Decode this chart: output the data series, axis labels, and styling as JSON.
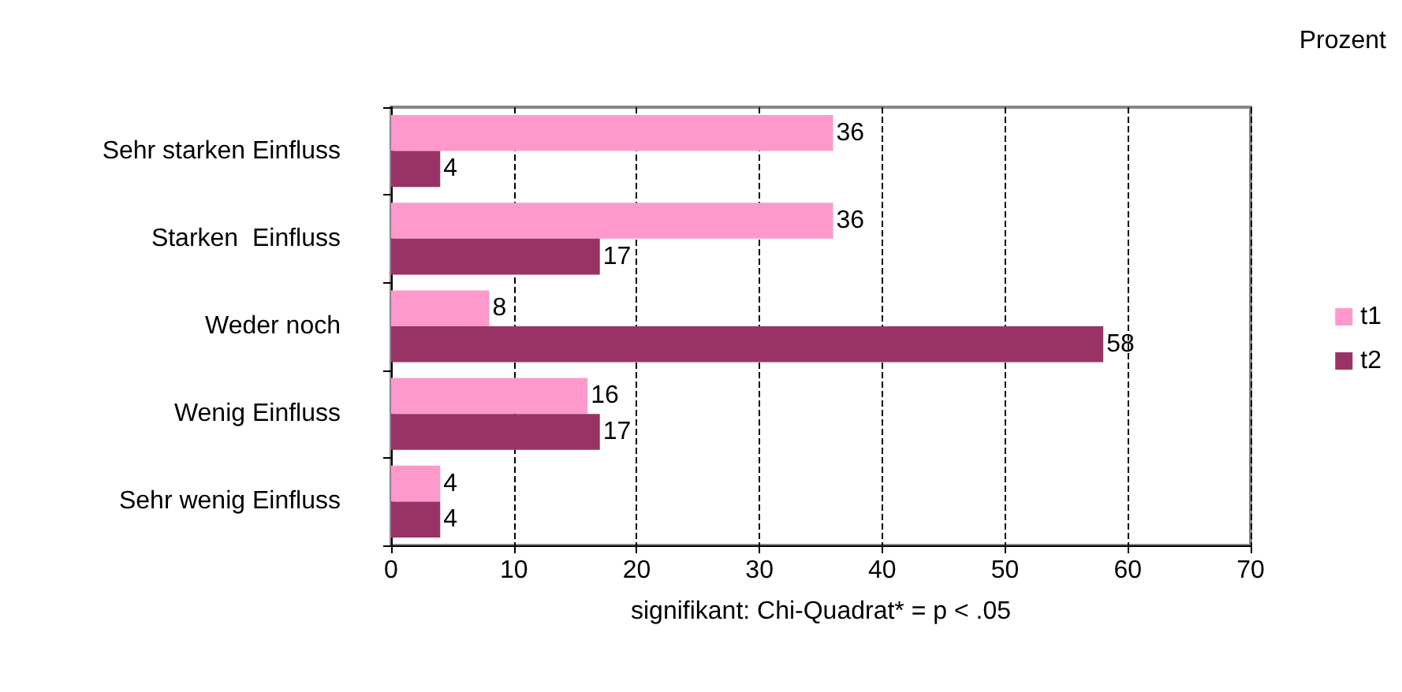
{
  "chart_data": {
    "type": "bar",
    "orientation": "horizontal",
    "annotations": [
      "Prozent"
    ],
    "xlabel": "signifikant: Chi-Quadrat* = p < .05",
    "categories": [
      "Sehr starken Einfluss",
      "Starken  Einfluss",
      "Weder noch",
      "Wenig Einfluss",
      "Sehr wenig Einfluss"
    ],
    "series": [
      {
        "name": "t1",
        "color": "#ff99cc",
        "values": [
          36,
          36,
          8,
          16,
          4
        ]
      },
      {
        "name": "t2",
        "color": "#993366",
        "values": [
          4,
          17,
          58,
          17,
          4
        ]
      }
    ],
    "xlim": [
      0,
      70
    ],
    "xticks": [
      0,
      10,
      20,
      30,
      40,
      50,
      60,
      70
    ],
    "grid": "x",
    "legend": "right",
    "data_labels": true
  }
}
